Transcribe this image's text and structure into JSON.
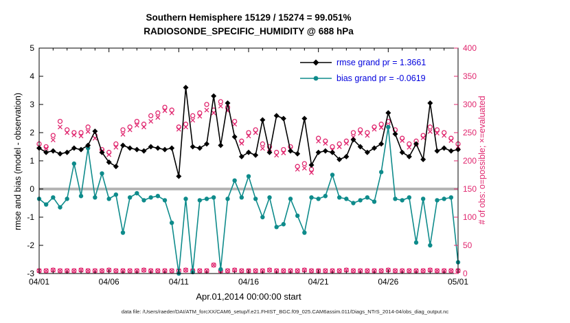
{
  "figure": {
    "background": "#ffffff"
  },
  "chart_data": {
    "type": "line",
    "title": "Southern Hemisphere 15129 / 15274 = 99.051%",
    "subtitle": "RADIOSONDE_SPECIFIC_HUMIDITY @ 688 hPa",
    "xlabel": "Apr.01,2014 00:00:00 start",
    "ylabel_left": "rmse and bias (model - observation)",
    "ylabel_right": "# of obs: o=possible; ×=evaluated",
    "caption": "data file: /Users/raeder/DAI/ATM_forcXX/CAM6_setup/f.e21.FHIST_BGC.f09_025.CAM6assim.011/Diags_NTrS_2014-04/obs_diag_output.nc",
    "legend_labels": [
      "rmse grand pr = 1.3661",
      "bias grand pr = -0.0619"
    ],
    "legend_position": "top-right-inside",
    "grid": false,
    "xlim": [
      0,
      30
    ],
    "ylim_left": [
      -3,
      5
    ],
    "ylim_right": [
      0,
      400
    ],
    "x_tick_days": [
      0,
      5,
      10,
      15,
      20,
      25,
      30
    ],
    "x_tick_labels": [
      "04/01",
      "04/06",
      "04/11",
      "04/16",
      "04/21",
      "04/26",
      "05/01"
    ],
    "y_ticks_left": [
      -3,
      -2,
      -1,
      0,
      1,
      2,
      3,
      4,
      5
    ],
    "y_ticks_right": [
      0,
      50,
      100,
      150,
      200,
      250,
      300,
      350,
      400
    ],
    "x_days": {
      "start": 0,
      "step": 0.5,
      "count": 61
    },
    "rmse": [
      1.45,
      1.3,
      1.35,
      1.25,
      1.3,
      1.45,
      1.4,
      1.55,
      2.05,
      1.3,
      0.95,
      0.8,
      1.55,
      1.45,
      1.4,
      1.35,
      1.5,
      1.45,
      1.4,
      1.45,
      0.45,
      3.6,
      1.5,
      1.45,
      1.6,
      3.3,
      1.55,
      3.05,
      1.85,
      1.15,
      1.3,
      1.2,
      2.45,
      1.3,
      2.6,
      2.5,
      1.35,
      1.25,
      2.5,
      0.85,
      1.3,
      1.35,
      1.3,
      1.05,
      1.15,
      1.75,
      1.5,
      1.3,
      1.45,
      1.6,
      2.7,
      1.95,
      1.3,
      1.15,
      1.6,
      1.05,
      3.05,
      1.35,
      1.45,
      1.35,
      1.4
    ],
    "bias": [
      -0.35,
      -0.55,
      -0.3,
      -0.65,
      -0.35,
      0.9,
      -0.25,
      1.45,
      -0.3,
      0.55,
      -0.35,
      -0.2,
      -1.55,
      -0.3,
      -0.15,
      -0.4,
      -0.3,
      -0.25,
      -0.4,
      -1.2,
      -3.0,
      -0.35,
      -2.95,
      -0.4,
      -0.35,
      -0.3,
      -2.85,
      -0.35,
      0.3,
      -0.3,
      0.45,
      -0.35,
      -1.0,
      -0.3,
      -1.35,
      -1.25,
      -0.35,
      -0.95,
      -1.55,
      -0.3,
      -0.35,
      -0.25,
      0.5,
      -0.3,
      -0.35,
      -0.5,
      -0.4,
      -0.3,
      -0.45,
      0.6,
      2.2,
      -0.35,
      -0.4,
      -0.3,
      -1.9,
      -0.35,
      -2.0,
      -0.4,
      -0.35,
      -0.3,
      -2.6
    ],
    "counts_possible": [
      230,
      225,
      245,
      270,
      255,
      250,
      250,
      260,
      245,
      220,
      215,
      230,
      255,
      260,
      270,
      265,
      280,
      285,
      295,
      290,
      260,
      265,
      280,
      285,
      300,
      290,
      305,
      295,
      270,
      235,
      250,
      255,
      230,
      225,
      215,
      220,
      225,
      190,
      195,
      185,
      240,
      235,
      225,
      230,
      235,
      250,
      255,
      250,
      260,
      265,
      270,
      255,
      240,
      230,
      235,
      245,
      260,
      255,
      250,
      240,
      230
    ],
    "counts_evaluated": [
      225,
      222,
      237,
      260,
      250,
      246,
      244,
      252,
      240,
      217,
      211,
      224,
      247,
      255,
      263,
      260,
      270,
      277,
      289,
      285,
      256,
      260,
      272,
      279,
      290,
      285,
      297,
      289,
      265,
      231,
      244,
      250,
      222,
      221,
      210,
      214,
      221,
      185,
      187,
      179,
      235,
      231,
      219,
      225,
      231,
      242,
      249,
      245,
      256,
      259,
      262,
      250,
      236,
      224,
      230,
      241,
      252,
      249,
      245,
      236,
      225
    ],
    "counts_low": [
      5,
      5,
      6,
      5,
      5,
      5,
      6,
      5,
      5,
      5,
      6,
      5,
      5,
      5,
      5,
      6,
      5,
      5,
      5,
      5,
      5,
      6,
      5,
      5,
      5,
      15,
      5,
      5,
      6,
      5,
      5,
      5,
      5,
      6,
      5,
      5,
      5,
      5,
      6,
      5,
      5,
      5,
      5,
      5,
      6,
      5,
      5,
      5,
      5,
      5,
      6,
      5,
      5,
      5,
      5,
      5,
      6,
      5,
      5,
      5,
      5
    ],
    "colors": {
      "rmse": "#000000",
      "bias": "#0e8b8b",
      "counts": "#e0266e",
      "legend_text": "#0000dd",
      "zero_line": "#b5b5b5",
      "frame": "#000000"
    }
  }
}
